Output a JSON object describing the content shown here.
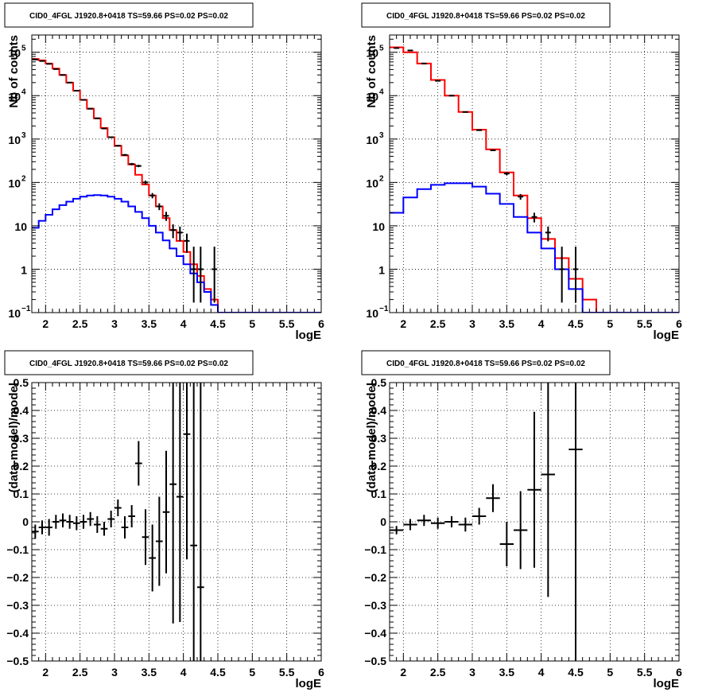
{
  "chart_data": [
    {
      "type": "line",
      "title": "CID0_4FGL J1920.8+0418 TS=59.66 PS=0.02 PS=0.02",
      "xlabel": "logE",
      "ylabel": "Nb of counts",
      "xlim": [
        1.8,
        6.0
      ],
      "ylim": [
        0.1,
        250000
      ],
      "yscale": "log",
      "grid": true,
      "xticks": [
        2,
        2.5,
        3,
        3.5,
        4,
        4.5,
        5,
        5.5,
        6
      ],
      "xtick_labels": [
        "2",
        "2.5",
        "3",
        "3.5",
        "4",
        "4.5",
        "5",
        "5.5",
        "6"
      ],
      "yticks": [
        0.1,
        1,
        10,
        100,
        1000,
        10000,
        100000
      ],
      "ytick_labels": [
        {
          "base": "10",
          "exp": "−1"
        },
        {
          "base": "1",
          "exp": ""
        },
        {
          "base": "10",
          "exp": ""
        },
        {
          "base": "10",
          "exp": "2"
        },
        {
          "base": "10",
          "exp": "3"
        },
        {
          "base": "10",
          "exp": "4"
        },
        {
          "base": "10",
          "exp": "5"
        }
      ],
      "bin_edges": [
        1.8,
        1.9,
        2.0,
        2.1,
        2.2,
        2.3,
        2.4,
        2.5,
        2.6,
        2.7,
        2.8,
        2.9,
        3.0,
        3.1,
        3.2,
        3.3,
        3.4,
        3.5,
        3.6,
        3.7,
        3.8,
        3.9,
        4.0,
        4.1,
        4.2,
        4.3,
        4.4,
        4.5,
        4.6,
        4.7,
        4.8,
        4.9,
        5.0,
        5.1,
        5.2,
        5.3,
        5.4,
        5.5,
        5.6,
        5.7,
        5.8,
        5.9,
        6.0
      ],
      "series": [
        {
          "style": "hist",
          "color": "#ff0000",
          "values": [
            70000,
            65000,
            55000,
            42000,
            30000,
            20000,
            13000,
            8000,
            5000,
            3000,
            1800,
            1100,
            700,
            420,
            260,
            150,
            90,
            50,
            28,
            15,
            8,
            4.5,
            2.5,
            1.3,
            0.7,
            0.35,
            0.2,
            0.1,
            0.1,
            0.1,
            0.1,
            0.1,
            0.1,
            0.1,
            0.1,
            0.1,
            0.1,
            0.1,
            0.1,
            0.1,
            0.1,
            0.1
          ]
        },
        {
          "style": "hist",
          "color": "#0000ff",
          "values": [
            9,
            13,
            18,
            24,
            30,
            36,
            42,
            47,
            50,
            51,
            50,
            47,
            42,
            36,
            28,
            21,
            15,
            10,
            7,
            4.6,
            3,
            2,
            1.3,
            0.8,
            0.5,
            0.3,
            0.15,
            0.1,
            0.1,
            0.1,
            0.1,
            0.1,
            0.1,
            0.1,
            0.1,
            0.1,
            0.1,
            0.1,
            0.1,
            0.1,
            0.1,
            0.1
          ]
        },
        {
          "style": "points",
          "color": "#000000",
          "x": [
            1.85,
            1.95,
            2.05,
            2.15,
            2.25,
            2.35,
            2.45,
            2.55,
            2.65,
            2.75,
            2.85,
            2.95,
            3.05,
            3.15,
            3.25,
            3.35,
            3.45,
            3.55,
            3.65,
            3.75,
            3.85,
            3.95,
            4.05,
            4.15,
            4.25,
            4.45
          ],
          "y": [
            68000,
            63000,
            54000,
            41000,
            30000,
            20000,
            13000,
            8000,
            5000,
            3000,
            1750,
            1100,
            700,
            430,
            265,
            240,
            100,
            50,
            28,
            17,
            8,
            7,
            4.5,
            1,
            1,
            1
          ],
          "yerr_lo": [
            260,
            250,
            230,
            200,
            170,
            140,
            114,
            89,
            71,
            55,
            42,
            33,
            26,
            21,
            16,
            15,
            10,
            7,
            5,
            4,
            2.8,
            2.6,
            2.1,
            0.83,
            0.83,
            0.83
          ],
          "yerr_hi": [
            260,
            250,
            230,
            200,
            170,
            140,
            114,
            89,
            71,
            55,
            42,
            33,
            26,
            21,
            16,
            15,
            10,
            7,
            5,
            4,
            2.8,
            2.6,
            2.1,
            2.3,
            2.3,
            2.3
          ]
        }
      ]
    },
    {
      "type": "line",
      "title": "CID0_4FGL J1920.8+0418 TS=59.66 PS=0.02 PS=0.02",
      "xlabel": "logE",
      "ylabel": "Nb of counts",
      "xlim": [
        1.8,
        6.0
      ],
      "ylim": [
        0.1,
        250000
      ],
      "yscale": "log",
      "grid": true,
      "xticks": [
        2,
        2.5,
        3,
        3.5,
        4,
        4.5,
        5,
        5.5,
        6
      ],
      "xtick_labels": [
        "2",
        "2.5",
        "3",
        "3.5",
        "4",
        "4.5",
        "5",
        "5.5",
        "6"
      ],
      "yticks": [
        0.1,
        1,
        10,
        100,
        1000,
        10000,
        100000
      ],
      "ytick_labels": [
        {
          "base": "10",
          "exp": "−1"
        },
        {
          "base": "1",
          "exp": ""
        },
        {
          "base": "10",
          "exp": ""
        },
        {
          "base": "10",
          "exp": "2"
        },
        {
          "base": "10",
          "exp": "3"
        },
        {
          "base": "10",
          "exp": "4"
        },
        {
          "base": "10",
          "exp": "5"
        }
      ],
      "bin_edges": [
        1.8,
        2.0,
        2.2,
        2.4,
        2.6,
        2.8,
        3.0,
        3.2,
        3.4,
        3.6,
        3.8,
        4.0,
        4.2,
        4.4,
        4.6,
        4.8,
        5.0,
        5.2,
        5.4,
        5.6,
        5.8,
        6.0
      ],
      "series": [
        {
          "style": "hist",
          "color": "#ff0000",
          "values": [
            130000,
            100000,
            55000,
            23000,
            10000,
            4200,
            1650,
            580,
            170,
            50,
            15,
            5,
            1.8,
            0.6,
            0.2,
            0.1,
            0.1,
            0.1,
            0.1,
            0.1,
            0.1
          ]
        },
        {
          "style": "hist",
          "color": "#0000ff",
          "values": [
            20,
            45,
            70,
            88,
            96,
            96,
            80,
            55,
            32,
            16,
            7,
            3,
            1,
            0.35,
            0.1,
            0.1,
            0.1,
            0.1,
            0.1,
            0.1,
            0.1
          ]
        },
        {
          "style": "points",
          "color": "#000000",
          "x": [
            1.9,
            2.1,
            2.3,
            2.5,
            2.7,
            2.9,
            3.1,
            3.3,
            3.5,
            3.7,
            3.9,
            4.1,
            4.3,
            4.5
          ],
          "y": [
            125000,
            110000,
            55000,
            22000,
            10000,
            4200,
            1600,
            550,
            160,
            47,
            16,
            7,
            1,
            1
          ],
          "yerr_lo": [
            350,
            330,
            235,
            150,
            100,
            65,
            40,
            23,
            13,
            7,
            4,
            2.6,
            0.83,
            0.83
          ],
          "yerr_hi": [
            350,
            330,
            235,
            150,
            100,
            65,
            40,
            23,
            13,
            7,
            4,
            2.6,
            2.3,
            2.3
          ]
        }
      ]
    },
    {
      "type": "scatter",
      "title": "CID0_4FGL J1920.8+0418 TS=59.66 PS=0.02 PS=0.02",
      "xlabel": "logE",
      "ylabel": "(data-model)/model",
      "xlim": [
        1.8,
        6.0
      ],
      "ylim": [
        -0.5,
        0.5
      ],
      "grid": true,
      "xticks": [
        2,
        2.5,
        3,
        3.5,
        4,
        4.5,
        5,
        5.5,
        6
      ],
      "xtick_labels": [
        "2",
        "2.5",
        "3",
        "3.5",
        "4",
        "4.5",
        "5",
        "5.5",
        "6"
      ],
      "yticks": [
        -0.5,
        -0.4,
        -0.3,
        -0.2,
        -0.1,
        0,
        0.1,
        0.2,
        0.3,
        0.4,
        0.5
      ],
      "ytick_labels": [
        "−0.5",
        "−0.4",
        "−0.3",
        "−0.2",
        "−0.1",
        "0",
        "0.1",
        "0.2",
        "0.3",
        "0.4",
        "0.5"
      ],
      "series": [
        {
          "style": "points",
          "color": "#000000",
          "xerr": 0.05,
          "x": [
            1.85,
            1.95,
            2.05,
            2.15,
            2.25,
            2.35,
            2.45,
            2.55,
            2.65,
            2.75,
            2.85,
            2.95,
            3.05,
            3.15,
            3.25,
            3.35,
            3.45,
            3.55,
            3.65,
            3.75,
            3.85,
            3.95,
            4.05,
            4.15,
            4.25
          ],
          "y": [
            -0.035,
            -0.02,
            -0.02,
            0.0,
            0.005,
            0.0,
            -0.005,
            0.0,
            0.01,
            -0.01,
            -0.025,
            0.01,
            0.05,
            -0.02,
            0.02,
            0.21,
            -0.055,
            -0.13,
            -0.07,
            0.035,
            0.135,
            0.09,
            0.315,
            -0.085,
            -0.235
          ],
          "yerr": [
            0.025,
            0.025,
            0.03,
            0.025,
            0.025,
            0.025,
            0.025,
            0.025,
            0.025,
            0.03,
            0.025,
            0.03,
            0.03,
            0.04,
            0.04,
            0.08,
            0.1,
            0.12,
            0.16,
            0.22,
            0.5,
            0.45,
            0.45,
            0.7,
            0.9
          ]
        }
      ]
    },
    {
      "type": "scatter",
      "title": "CID0_4FGL J1920.8+0418 TS=59.66 PS=0.02 PS=0.02",
      "xlabel": "logE",
      "ylabel": "(data-model)/model",
      "xlim": [
        1.8,
        6.0
      ],
      "ylim": [
        -0.5,
        0.5
      ],
      "grid": true,
      "xticks": [
        2,
        2.5,
        3,
        3.5,
        4,
        4.5,
        5,
        5.5,
        6
      ],
      "xtick_labels": [
        "2",
        "2.5",
        "3",
        "3.5",
        "4",
        "4.5",
        "5",
        "5.5",
        "6"
      ],
      "yticks": [
        -0.5,
        -0.4,
        -0.3,
        -0.2,
        -0.1,
        0,
        0.1,
        0.2,
        0.3,
        0.4,
        0.5
      ],
      "ytick_labels": [
        "−0.5",
        "−0.4",
        "−0.3",
        "−0.2",
        "−0.1",
        "0",
        "0.1",
        "0.2",
        "0.3",
        "0.4",
        "0.5"
      ],
      "series": [
        {
          "style": "points",
          "color": "#000000",
          "xerr": 0.1,
          "x": [
            1.9,
            2.1,
            2.3,
            2.5,
            2.7,
            2.9,
            3.1,
            3.3,
            3.5,
            3.7,
            3.9,
            4.1,
            4.5
          ],
          "y": [
            -0.03,
            -0.01,
            0.005,
            -0.005,
            0.0,
            -0.01,
            0.02,
            0.085,
            -0.08,
            -0.03,
            0.115,
            0.17,
            0.26
          ],
          "yerr": [
            0.015,
            0.02,
            0.02,
            0.02,
            0.02,
            0.025,
            0.03,
            0.05,
            0.08,
            0.14,
            0.28,
            0.44,
            1.0
          ]
        }
      ]
    }
  ]
}
